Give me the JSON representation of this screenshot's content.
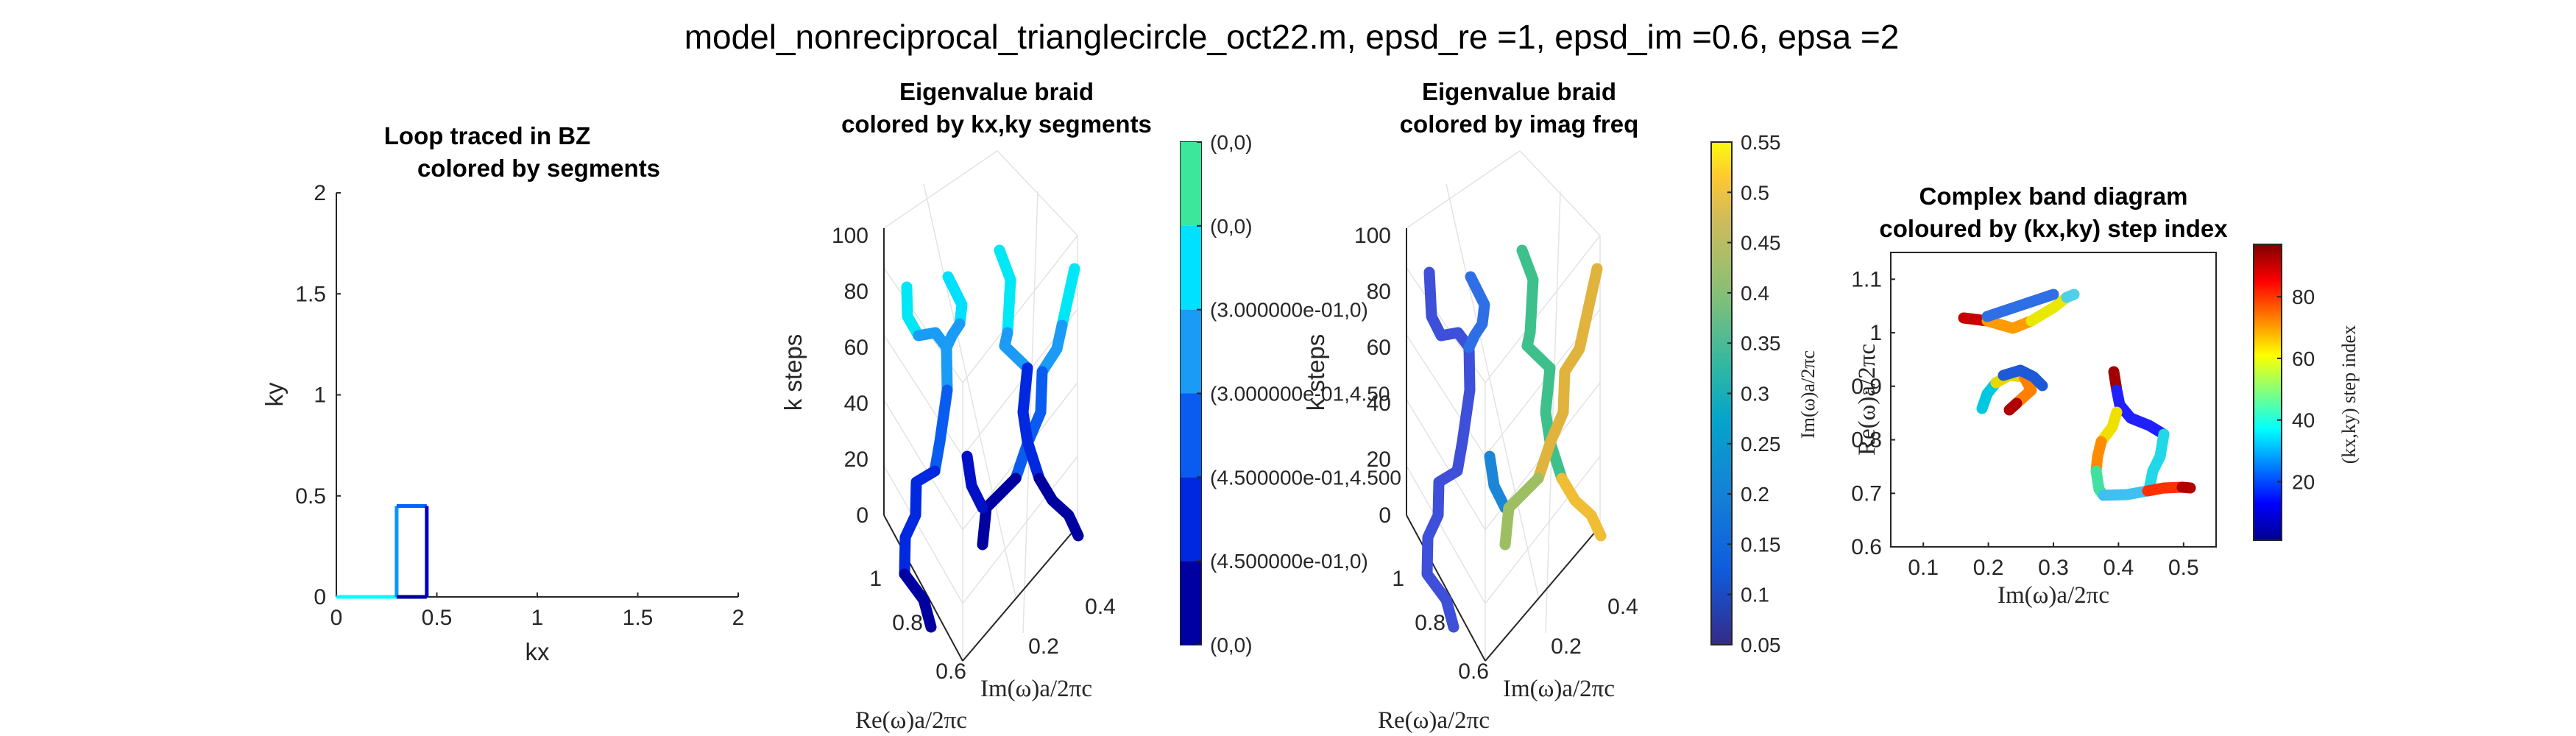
{
  "figure": {
    "suptitle": "model_nonreciprocal_trianglecircle_oct22.m, epsd_re =1, epsd_im =0.6, epsa =2"
  },
  "chart_data": [
    {
      "type": "line",
      "title": [
        "Loop traced in BZ",
        "colored by segments"
      ],
      "xlabel": "kx",
      "ylabel": "ky",
      "xlim": [
        0,
        2
      ],
      "ylim": [
        0,
        2
      ],
      "xticks": [
        "0",
        "0.5",
        "1",
        "1.5",
        "2"
      ],
      "yticks": [
        "0",
        "0.5",
        "1",
        "1.5",
        "2"
      ],
      "grid": false,
      "series": [
        {
          "color": "#00ffff",
          "x": [
            0,
            0.3
          ],
          "y": [
            0,
            0
          ]
        },
        {
          "color": "#0096ff",
          "x": [
            0.3,
            0.3
          ],
          "y": [
            0,
            0.45
          ]
        },
        {
          "color": "#0064ff",
          "x": [
            0.3,
            0.45
          ],
          "y": [
            0.45,
            0.45
          ]
        },
        {
          "color": "#0000c8",
          "x": [
            0.45,
            0.45
          ],
          "y": [
            0.45,
            0
          ]
        },
        {
          "color": "#0000a0",
          "x": [
            0.45,
            0.3
          ],
          "y": [
            0,
            0
          ]
        }
      ]
    },
    {
      "type": "line",
      "title": [
        "Eigenvalue braid",
        "colored by kx,ky segments"
      ],
      "zlabel": "k steps",
      "xlabel": "Im(ω)a/2πc",
      "ylabel": "Re(ω)a/2πc",
      "zticks": [
        "0",
        "20",
        "40",
        "60",
        "80",
        "100"
      ],
      "xticks": [
        "0.2",
        "0.4"
      ],
      "yticks": [
        "0.6",
        "0.8",
        "1"
      ],
      "colorbar": {
        "type": "segments",
        "labels": [
          "(0,0)",
          "(0,0)",
          "(3.000000e-01,0)",
          "(3.000000e-01,4.50",
          "(4.500000e-01,4.500",
          "(4.500000e-01,0)",
          "(0,0)"
        ],
        "colors": [
          "#3ce69a",
          "#00e0ff",
          "#1a9bf5",
          "#0a5cf0",
          "#0028e0",
          "#0000a0"
        ]
      }
    },
    {
      "type": "line",
      "title": [
        "Eigenvalue braid",
        "colored by imag freq"
      ],
      "zlabel": "k steps",
      "xlabel": "Im(ω)a/2πc",
      "ylabel": "Re(ω)a/2πc",
      "zticks": [
        "0",
        "20",
        "40",
        "60",
        "80",
        "100"
      ],
      "xticks": [
        "0.2",
        "0.4"
      ],
      "colorbar": {
        "label": "Im(ω)a/2πc",
        "range": [
          0.05,
          0.55
        ],
        "ticks": [
          "0.05",
          "0.1",
          "0.15",
          "0.2",
          "0.25",
          "0.3",
          "0.35",
          "0.4",
          "0.45",
          "0.5",
          "0.55"
        ]
      }
    },
    {
      "type": "scatter",
      "title": [
        "Complex band diagram",
        "coloured by (kx,ky) step index"
      ],
      "xlabel": "Im(ω)a/2πc",
      "ylabel": "Re(ω)a/2πc",
      "xlim": [
        0.05,
        0.55
      ],
      "ylim": [
        0.6,
        1.15
      ],
      "xticks": [
        "0.1",
        "0.2",
        "0.3",
        "0.4",
        "0.5"
      ],
      "yticks": [
        "0.6",
        "0.7",
        "0.8",
        "0.9",
        "1",
        "1.1"
      ],
      "colorbar": {
        "label": "(kx,ky) step index",
        "range": [
          1,
          97
        ],
        "ticks": [
          "20",
          "40",
          "60",
          "80"
        ]
      }
    }
  ]
}
